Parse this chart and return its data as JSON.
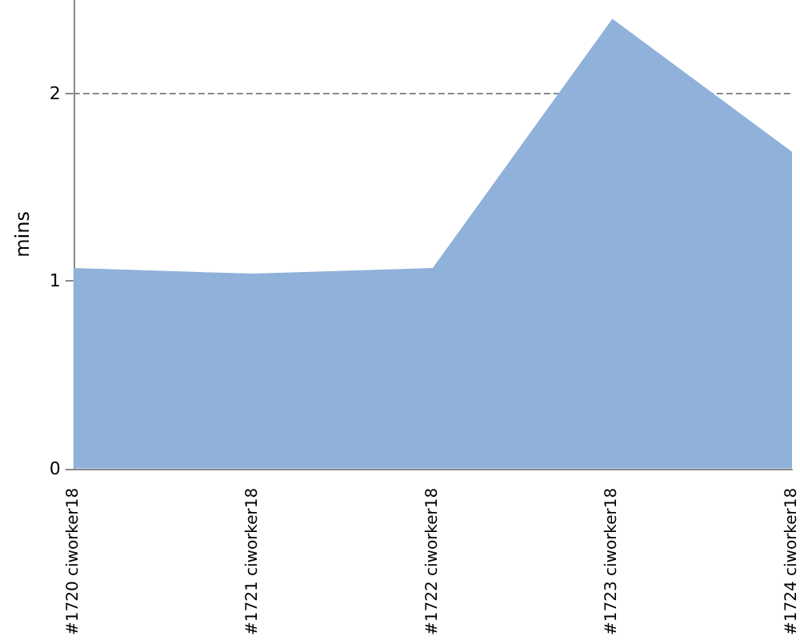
{
  "chart_data": {
    "type": "area",
    "ylabel": "mins",
    "categories": [
      "#1720 ciworker18",
      "#1721 ciworker18",
      "#1722 ciworker18",
      "#1723 ciworker18",
      "#1724 ciworker18"
    ],
    "series": [
      {
        "color": "#8fb1da",
        "values": [
          1.07,
          1.04,
          1.07,
          2.4,
          1.69
        ]
      }
    ],
    "ylim": [
      0,
      2.5
    ],
    "yticks": [
      0,
      1,
      2
    ],
    "grid": "y"
  }
}
